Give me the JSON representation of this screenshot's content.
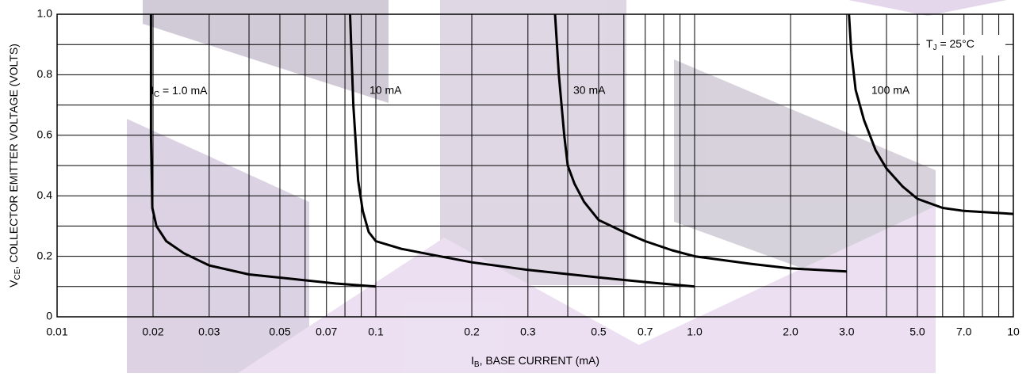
{
  "chart_data": {
    "type": "line",
    "x_scale": "log",
    "grid": true,
    "x_label": [
      "I",
      "B",
      ", BASE CURRENT (mA)"
    ],
    "y_label": [
      "V",
      "CE",
      ", COLLECTOR EMITTER VOLTAGE (VOLTS)"
    ],
    "note": [
      "T",
      "J",
      " = 25°C"
    ],
    "curve_label_prefix": [
      "I",
      "C",
      " = "
    ],
    "xlim": [
      0.01,
      10
    ],
    "ylim": [
      0,
      1
    ],
    "xticks": [
      0.01,
      0.02,
      0.03,
      0.05,
      0.07,
      0.1,
      0.2,
      0.3,
      0.5,
      0.7,
      {
        "value": 1,
        "label": "1.0"
      },
      {
        "value": 2,
        "label": "2.0"
      },
      {
        "value": 3,
        "label": "3.0"
      },
      {
        "value": 5,
        "label": "5.0"
      },
      {
        "value": 7,
        "label": "7.0"
      },
      10
    ],
    "x_minor_ticks": [
      0.04,
      0.06,
      0.08,
      0.09,
      0.4,
      0.6,
      0.8,
      0.9,
      4,
      6,
      8,
      9
    ],
    "yticks": [
      0,
      0.2,
      0.4,
      0.6,
      0.8,
      {
        "value": 1,
        "label": "1.0"
      }
    ],
    "y_minor_ticks": [
      0.1,
      0.3,
      0.5,
      0.7,
      0.9
    ],
    "series": [
      {
        "name": "1.0 mA",
        "color": "#000000",
        "x": [
          0.0197,
          0.0197,
          0.0199,
          0.0205,
          0.022,
          0.025,
          0.03,
          0.04,
          0.055,
          0.075,
          0.1
        ],
        "values": [
          1.0,
          0.6,
          0.36,
          0.3,
          0.25,
          0.21,
          0.17,
          0.14,
          0.125,
          0.11,
          0.1
        ]
      },
      {
        "name": "10 mA",
        "color": "#000000",
        "x": [
          0.083,
          0.085,
          0.088,
          0.091,
          0.095,
          0.1,
          0.12,
          0.15,
          0.2,
          0.3,
          0.5,
          0.7,
          1.0
        ],
        "values": [
          1.0,
          0.7,
          0.45,
          0.35,
          0.28,
          0.25,
          0.225,
          0.205,
          0.18,
          0.155,
          0.13,
          0.115,
          0.1
        ]
      },
      {
        "name": "30 mA",
        "color": "#000000",
        "x": [
          0.365,
          0.375,
          0.39,
          0.4,
          0.42,
          0.45,
          0.5,
          0.6,
          0.7,
          0.85,
          1.0,
          1.5,
          2.0,
          3.0
        ],
        "values": [
          1.0,
          0.8,
          0.6,
          0.5,
          0.44,
          0.38,
          0.32,
          0.28,
          0.25,
          0.22,
          0.2,
          0.175,
          0.16,
          0.15
        ]
      },
      {
        "name": "100 mA",
        "color": "#000000",
        "x": [
          3.05,
          3.1,
          3.2,
          3.4,
          3.7,
          4.0,
          4.5,
          5.0,
          6.0,
          7.0,
          10
        ],
        "values": [
          1.0,
          0.88,
          0.75,
          0.65,
          0.55,
          0.49,
          0.43,
          0.39,
          0.36,
          0.35,
          0.34
        ]
      }
    ]
  }
}
